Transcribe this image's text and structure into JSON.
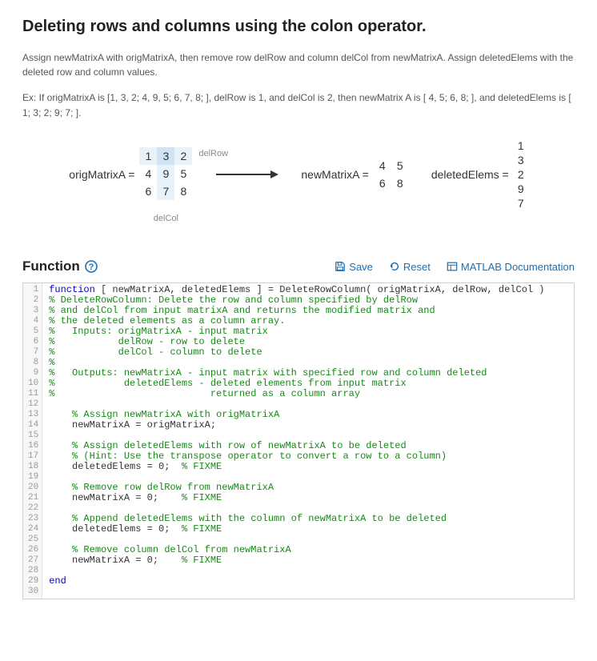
{
  "title": "Deleting rows and columns using the colon operator.",
  "desc": "Assign newMatrixA with origMatrixA, then remove row delRow and column delCol from newMatrixA. Assign deletedElems with the deleted row and column values.",
  "example": "Ex: If origMatrixA is [1, 3, 2; 4, 9, 5; 6, 7, 8; ], delRow is 1, and delCol is 2, then newMatrix A is  [ 4, 5; 6, 8; ], and deletedElems is [ 1; 3; 2; 9; 7; ].",
  "diagram": {
    "origLabel": "origMatrixA =",
    "origMatrix": [
      [
        1,
        3,
        2
      ],
      [
        4,
        9,
        5
      ],
      [
        6,
        7,
        8
      ]
    ],
    "delRowIdx": 0,
    "delColIdx": 1,
    "delRowLabel": "delRow",
    "delColLabel": "delCol",
    "newLabel": "newMatrixA =",
    "newMatrix": [
      [
        4,
        5
      ],
      [
        6,
        8
      ]
    ],
    "delElemsLabel": "deletedElems =",
    "deletedElems": [
      1,
      3,
      2,
      9,
      7
    ]
  },
  "section": {
    "title": "Function",
    "save": "Save",
    "reset": "Reset",
    "docs": "MATLAB Documentation"
  },
  "code": [
    {
      "t": "function [ newMatrixA, deletedElems ] = DeleteRowColumn( origMatrixA, delRow, delCol )",
      "cls": "kw-line"
    },
    {
      "t": "% DeleteRowColumn: Delete the row and column specified by delRow",
      "cls": "cm"
    },
    {
      "t": "% and delCol from input matrixA and returns the modified matrix and",
      "cls": "cm"
    },
    {
      "t": "% the deleted elements as a column array.",
      "cls": "cm"
    },
    {
      "t": "%   Inputs: origMatrixA - input matrix",
      "cls": "cm"
    },
    {
      "t": "%           delRow - row to delete",
      "cls": "cm"
    },
    {
      "t": "%           delCol - column to delete",
      "cls": "cm"
    },
    {
      "t": "%",
      "cls": "cm"
    },
    {
      "t": "%   Outputs: newMatrixA - input matrix with specified row and column deleted",
      "cls": "cm"
    },
    {
      "t": "%            deletedElems - deleted elements from input matrix",
      "cls": "cm"
    },
    {
      "t": "%                           returned as a column array",
      "cls": "cm"
    },
    {
      "t": "",
      "cls": ""
    },
    {
      "t": "    % Assign newMatrixA with origMatrixA",
      "cls": "cm"
    },
    {
      "t": "    newMatrixA = origMatrixA;",
      "cls": ""
    },
    {
      "t": "",
      "cls": ""
    },
    {
      "t": "    % Assign deletedElems with row of newMatrixA to be deleted",
      "cls": "cm"
    },
    {
      "t": "    % (Hint: Use the transpose operator to convert a row to a column)",
      "cls": "cm"
    },
    {
      "t": "    deletedElems = 0;  % FIXME",
      "cls": "mix"
    },
    {
      "t": "",
      "cls": ""
    },
    {
      "t": "    % Remove row delRow from newMatrixA",
      "cls": "cm"
    },
    {
      "t": "    newMatrixA = 0;    % FIXME",
      "cls": "mix"
    },
    {
      "t": "",
      "cls": ""
    },
    {
      "t": "    % Append deletedElems with the column of newMatrixA to be deleted",
      "cls": "cm"
    },
    {
      "t": "    deletedElems = 0;  % FIXME",
      "cls": "mix"
    },
    {
      "t": "",
      "cls": ""
    },
    {
      "t": "    % Remove column delCol from newMatrixA",
      "cls": "cm"
    },
    {
      "t": "    newMatrixA = 0;    % FIXME",
      "cls": "mix"
    },
    {
      "t": "",
      "cls": ""
    },
    {
      "t": "end",
      "cls": "kw"
    },
    {
      "t": "",
      "cls": ""
    }
  ],
  "colors": {
    "link": "#1a6fb5",
    "keyword": "#0000cc",
    "comment": "#178a17",
    "gutter_bg": "#f7f7f7",
    "border": "#cfcfcf"
  }
}
